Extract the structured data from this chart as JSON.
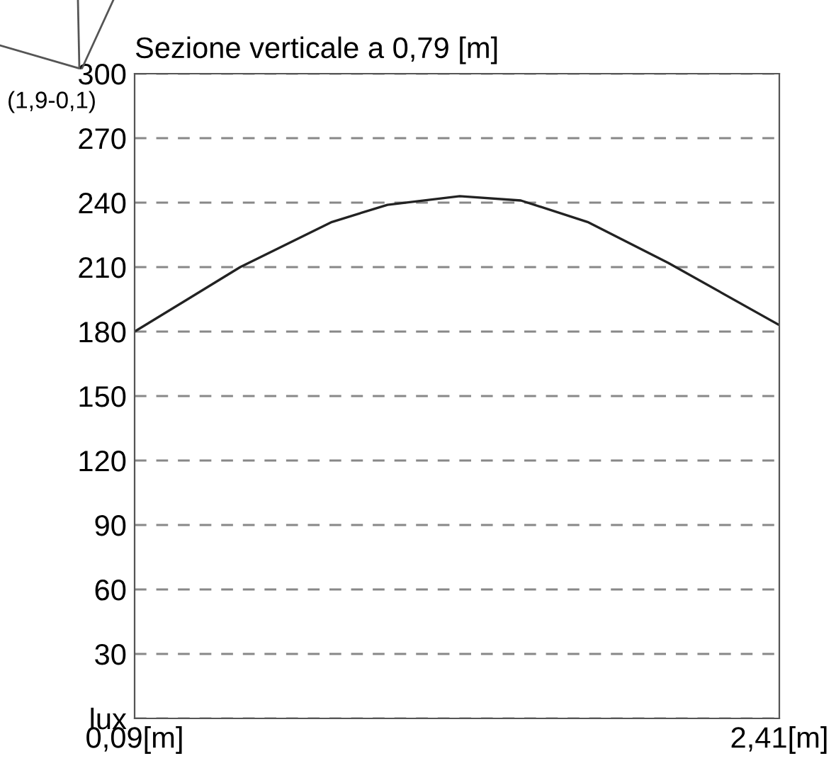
{
  "chart_data": {
    "type": "line",
    "title": "Sezione verticale a 0,79 [m]",
    "x": [
      0.09,
      0.47,
      0.8,
      1.0,
      1.26,
      1.48,
      1.72,
      2.01,
      2.41
    ],
    "series": [
      {
        "color": "#222222",
        "values": [
          180,
          210,
          231,
          239,
          243,
          241,
          231,
          212,
          183
        ]
      }
    ],
    "xlim": [
      0.09,
      2.41
    ],
    "xticks": [
      {
        "value": 0.09,
        "label": "0,09[m]"
      },
      {
        "value": 2.41,
        "label": "2,41[m]"
      }
    ],
    "ylim": [
      0,
      300
    ],
    "yticks": [
      {
        "value": 0,
        "label": "lux"
      },
      30,
      60,
      90,
      120,
      150,
      180,
      210,
      240,
      270,
      300
    ],
    "grid": "y",
    "legend": false,
    "marker": "none",
    "line_style": "solid",
    "annotations": [
      "(1,9-0,1)"
    ]
  }
}
